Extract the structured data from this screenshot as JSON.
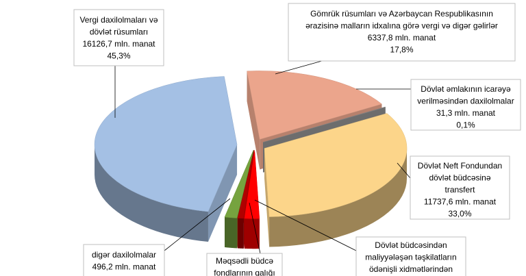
{
  "chart_data": {
    "type": "pie3d",
    "slices": [
      {
        "name_lines": [
          "Gömrük rüsumları və Azərbaycan Respublikasının",
          "ərazisinə malların idxalına görə vergi və digər gəlirlər"
        ],
        "value": 6337.8,
        "value_label": "6337,8 mln. manat",
        "percent": 17.8,
        "percent_label": "17,8%",
        "color": "#eba58c"
      },
      {
        "name_lines": [
          "Dövlət əmlakının icarəyə",
          "verilməsindən daxilolmalar"
        ],
        "value": 31.3,
        "value_label": "31,3 mln. manat",
        "percent": 0.1,
        "percent_label": "0,1%",
        "color": "#8c8c8c"
      },
      {
        "name_lines": [
          "Dövlət Neft Fondundan",
          "dövlət büdcəsinə",
          "transfert"
        ],
        "value": 11737.6,
        "value_label": "11737,6 mln. manat",
        "percent": 33.0,
        "percent_label": "33,0%",
        "color": "#fcd58a"
      },
      {
        "name_lines": [
          "Dövlət büdcəsindən",
          "maliyyələşən təşkilatların",
          "ödənişli xidmətlərindən"
        ],
        "value": 600,
        "color": "#ff0000"
      },
      {
        "name_lines": [
          "Məqsədli büdcə",
          "fondlarının qalığı"
        ],
        "value": 250,
        "color": "#b00000"
      },
      {
        "name_lines": [
          "digər daxilolmalar"
        ],
        "value": 496.2,
        "value_label": "496,2 mln. manat",
        "color": "#76a33f"
      },
      {
        "name_lines": [
          "Vergi daxilolmaları və",
          "dövlət rüsumları"
        ],
        "value": 16126.7,
        "value_label": "16126,7 mln. manat",
        "percent": 45.3,
        "percent_label": "45,3%",
        "color": "#a4c0e4"
      }
    ]
  }
}
